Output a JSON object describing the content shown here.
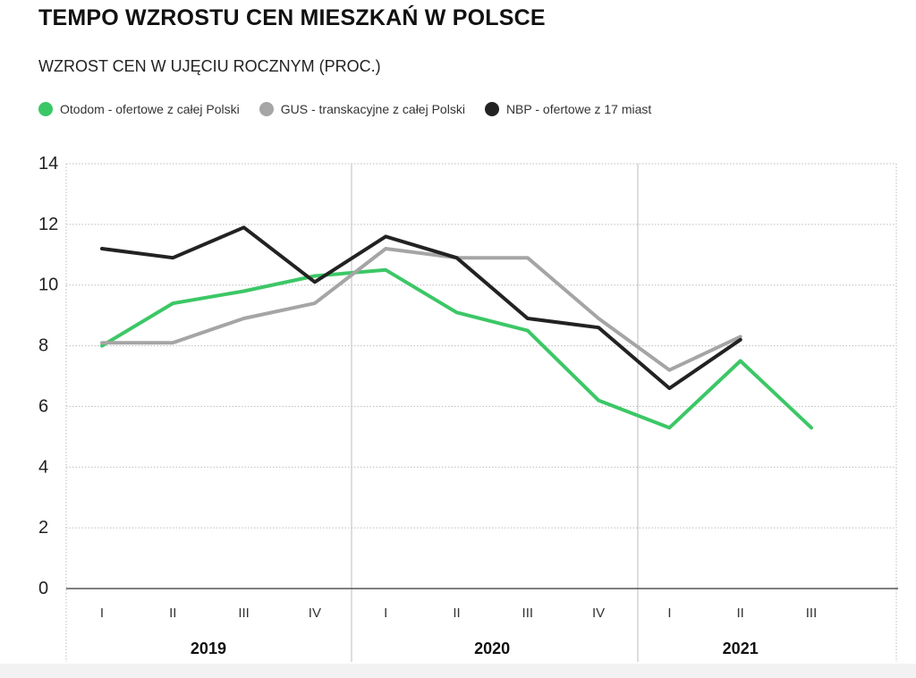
{
  "title": "TEMPO WZROSTU CEN MIESZKAŃ W POLSCE",
  "subtitle": "WZROST CEN W UJĘCIU ROCZNYM (PROC.)",
  "colors": {
    "otodom": "#3cc766",
    "gus": "#a5a5a5",
    "nbp": "#222222",
    "grid": "#bdbdbd",
    "axis": "#888888"
  },
  "chart_data": {
    "type": "line",
    "title": "TEMPO WZROSTU CEN MIESZKAŃ W POLSCE",
    "subtitle": "WZROST CEN W UJĘCIU ROCZNYM (PROC.)",
    "categories": [
      "I",
      "II",
      "III",
      "IV",
      "I",
      "II",
      "III",
      "IV",
      "I",
      "II",
      "III"
    ],
    "years": [
      {
        "label": "2019",
        "quarters": 4
      },
      {
        "label": "2020",
        "quarters": 4
      },
      {
        "label": "2021",
        "quarters": 3
      }
    ],
    "ylim": [
      0,
      14
    ],
    "yticks": [
      0,
      2,
      4,
      6,
      8,
      10,
      12,
      14
    ],
    "grid": true,
    "legend_position": "top-left",
    "series": [
      {
        "key": "otodom",
        "name": "Otodom - ofertowe z całej Polski",
        "color": "#3cc766",
        "values": [
          8.0,
          9.4,
          9.8,
          10.3,
          10.5,
          9.1,
          8.5,
          6.2,
          5.3,
          7.5,
          5.3
        ]
      },
      {
        "key": "gus",
        "name": "GUS - transkacyjne z całej Polski",
        "color": "#a5a5a5",
        "values": [
          8.1,
          8.1,
          8.9,
          9.4,
          11.2,
          10.9,
          10.9,
          8.9,
          7.2,
          8.3,
          null
        ]
      },
      {
        "key": "nbp",
        "name": "NBP - ofertowe z 17 miast",
        "color": "#222222",
        "values": [
          11.2,
          10.9,
          11.9,
          10.1,
          11.6,
          10.9,
          8.9,
          8.6,
          6.6,
          8.2,
          null
        ]
      }
    ]
  }
}
